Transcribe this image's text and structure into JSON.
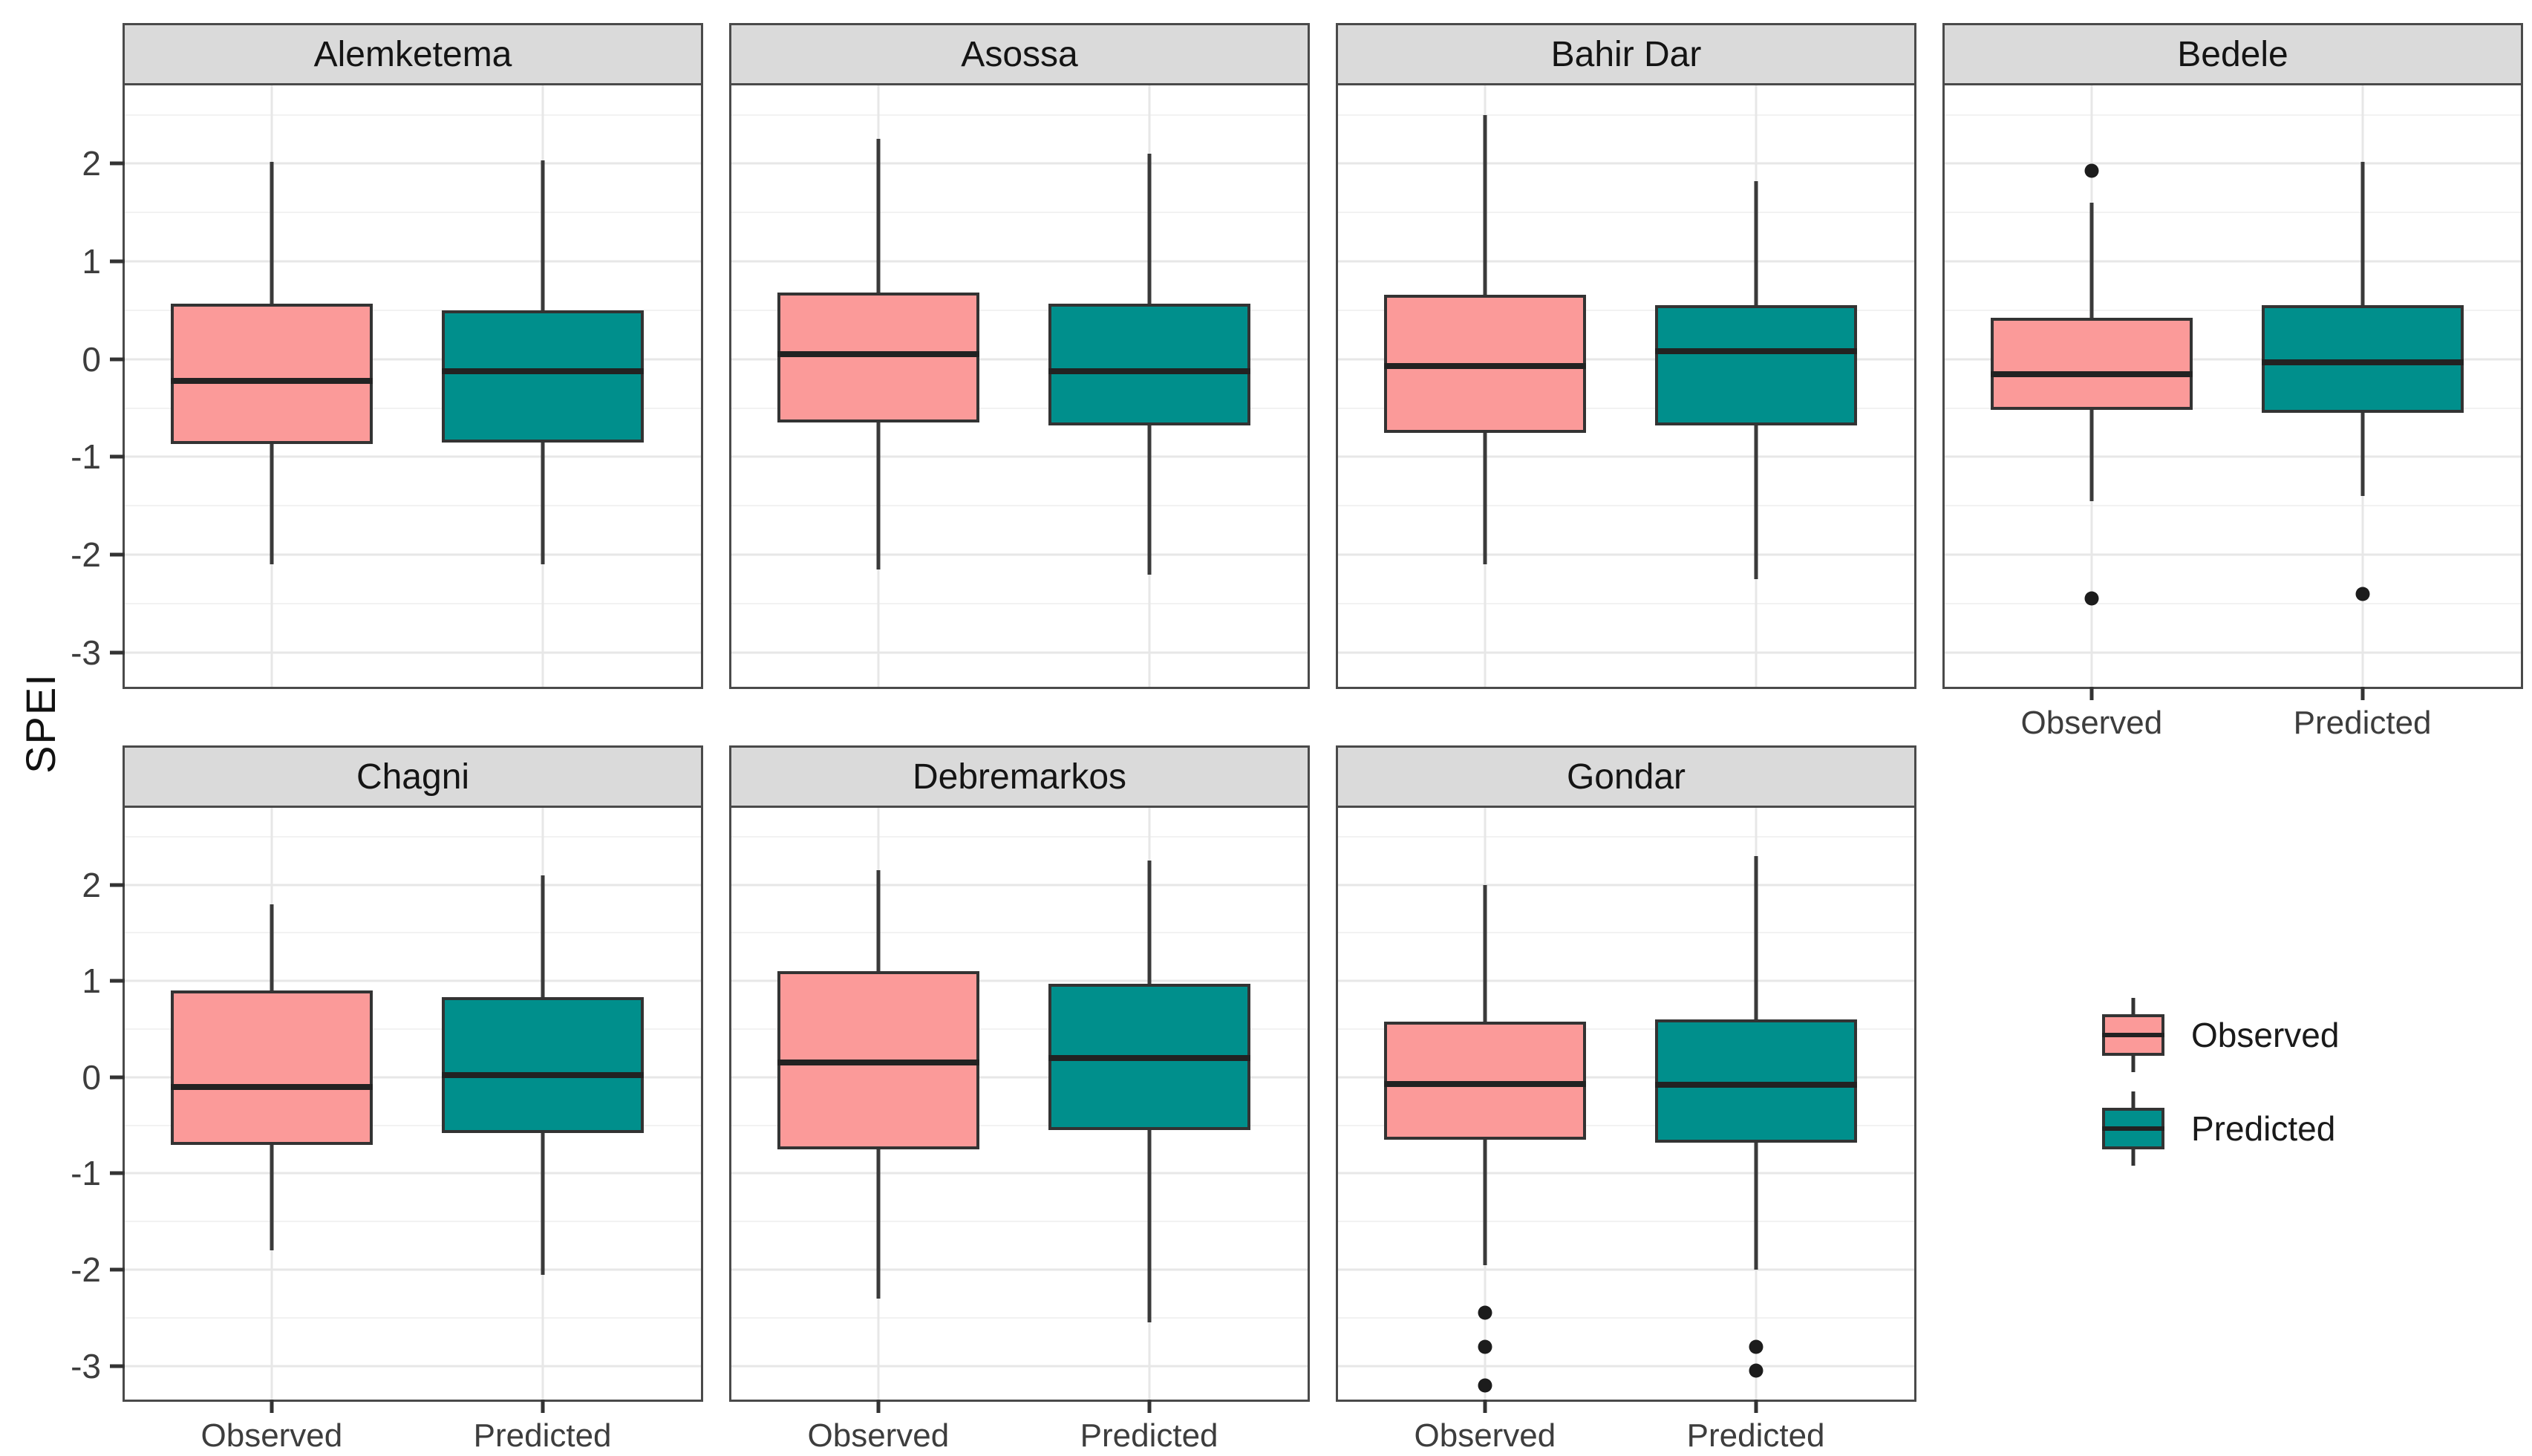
{
  "chart_data": {
    "type": "boxplot",
    "title": "",
    "xlabel": "",
    "ylabel": "SPEI",
    "categories": [
      "Observed",
      "Predicted"
    ],
    "series_colors": {
      "Observed": "#FB9A99",
      "Predicted": "#008F8C"
    },
    "ylim": [
      -3.35,
      2.8
    ],
    "yticks": [
      {
        "label": "2",
        "value": 2
      },
      {
        "label": "1",
        "value": 1
      },
      {
        "label": "0",
        "value": 0
      },
      {
        "label": "-1",
        "value": -1
      },
      {
        "label": "-2",
        "value": -2
      },
      {
        "label": "-3",
        "value": -3
      }
    ],
    "yticks_minor": [
      2.5,
      1.5,
      0.5,
      -0.5,
      -1.5,
      -2.5
    ],
    "grid": true,
    "legend_position": "bottom-right-empty-cell",
    "facets": [
      {
        "title": "Alemketema",
        "show_x_labels": false,
        "boxes": [
          {
            "category": "Observed",
            "whisker_low": -2.1,
            "q1": -0.87,
            "median": -0.22,
            "q3": 0.57,
            "whisker_high": 2.02,
            "outliers": []
          },
          {
            "category": "Predicted",
            "whisker_low": -2.1,
            "q1": -0.85,
            "median": -0.12,
            "q3": 0.5,
            "whisker_high": 2.03,
            "outliers": []
          }
        ]
      },
      {
        "title": "Asossa",
        "show_x_labels": false,
        "boxes": [
          {
            "category": "Observed",
            "whisker_low": -2.15,
            "q1": -0.65,
            "median": 0.05,
            "q3": 0.68,
            "whisker_high": 2.25,
            "outliers": []
          },
          {
            "category": "Predicted",
            "whisker_low": -2.2,
            "q1": -0.68,
            "median": -0.12,
            "q3": 0.57,
            "whisker_high": 2.1,
            "outliers": []
          }
        ]
      },
      {
        "title": "Bahir Dar",
        "show_x_labels": false,
        "boxes": [
          {
            "category": "Observed",
            "whisker_low": -2.1,
            "q1": -0.75,
            "median": -0.07,
            "q3": 0.66,
            "whisker_high": 2.5,
            "outliers": []
          },
          {
            "category": "Predicted",
            "whisker_low": -2.25,
            "q1": -0.68,
            "median": 0.08,
            "q3": 0.55,
            "whisker_high": 1.82,
            "outliers": []
          }
        ]
      },
      {
        "title": "Bedele",
        "show_x_labels": true,
        "boxes": [
          {
            "category": "Observed",
            "whisker_low": -1.45,
            "q1": -0.52,
            "median": -0.15,
            "q3": 0.42,
            "whisker_high": 1.6,
            "outliers": [
              1.93,
              -2.45
            ]
          },
          {
            "category": "Predicted",
            "whisker_low": -1.4,
            "q1": -0.55,
            "median": -0.03,
            "q3": 0.55,
            "whisker_high": 2.02,
            "outliers": [
              -2.4
            ]
          }
        ]
      },
      {
        "title": "Chagni",
        "show_x_labels": true,
        "boxes": [
          {
            "category": "Observed",
            "whisker_low": -1.8,
            "q1": -0.7,
            "median": -0.1,
            "q3": 0.9,
            "whisker_high": 1.8,
            "outliers": []
          },
          {
            "category": "Predicted",
            "whisker_low": -2.05,
            "q1": -0.58,
            "median": 0.02,
            "q3": 0.83,
            "whisker_high": 2.1,
            "outliers": []
          }
        ]
      },
      {
        "title": "Debremarkos",
        "show_x_labels": true,
        "boxes": [
          {
            "category": "Observed",
            "whisker_low": -2.3,
            "q1": -0.75,
            "median": 0.15,
            "q3": 1.1,
            "whisker_high": 2.15,
            "outliers": []
          },
          {
            "category": "Predicted",
            "whisker_low": -2.55,
            "q1": -0.55,
            "median": 0.2,
            "q3": 0.97,
            "whisker_high": 2.25,
            "outliers": []
          }
        ]
      },
      {
        "title": "Gondar",
        "show_x_labels": true,
        "boxes": [
          {
            "category": "Observed",
            "whisker_low": -1.95,
            "q1": -0.65,
            "median": -0.07,
            "q3": 0.58,
            "whisker_high": 2.0,
            "outliers": [
              -2.45,
              -2.8,
              -3.2
            ]
          },
          {
            "category": "Predicted",
            "whisker_low": -2.0,
            "q1": -0.68,
            "median": -0.08,
            "q3": 0.6,
            "whisker_high": 2.3,
            "outliers": [
              -2.8,
              -3.05
            ]
          }
        ]
      }
    ],
    "legend": {
      "entries": [
        {
          "label": "Observed",
          "color": "#FB9A99"
        },
        {
          "label": "Predicted",
          "color": "#008F8C"
        }
      ]
    },
    "colors": {
      "observed_fill": "#FB9A99",
      "predicted_fill": "#008F8C",
      "box_border": "#333333",
      "median_line": "#222222",
      "whisker": "#3A3A3A",
      "outlier": "#1C1C1C",
      "header_bg": "#DADADA",
      "panel_border": "#4A4A4A",
      "grid_major": "#E7E7E7",
      "grid_minor": "#F2F2F2"
    }
  }
}
